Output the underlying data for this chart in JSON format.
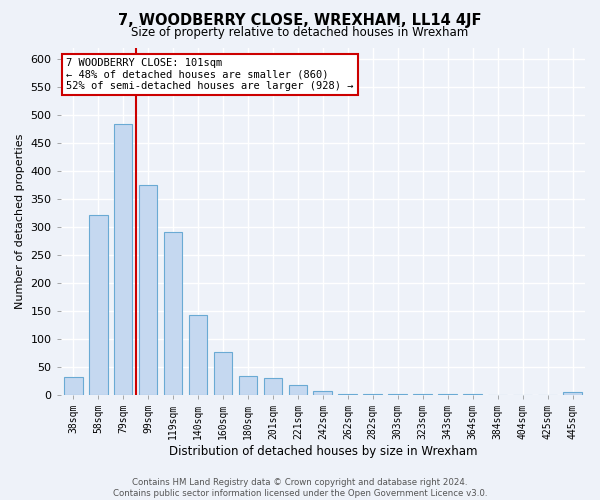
{
  "title": "7, WOODBERRY CLOSE, WREXHAM, LL14 4JF",
  "subtitle": "Size of property relative to detached houses in Wrexham",
  "xlabel": "Distribution of detached houses by size in Wrexham",
  "ylabel": "Number of detached properties",
  "bar_color": "#c5d8f0",
  "bar_edge_color": "#6aaad4",
  "background_color": "#eef2f9",
  "grid_color": "#ffffff",
  "categories": [
    "38sqm",
    "58sqm",
    "79sqm",
    "99sqm",
    "119sqm",
    "140sqm",
    "160sqm",
    "180sqm",
    "201sqm",
    "221sqm",
    "242sqm",
    "262sqm",
    "282sqm",
    "303sqm",
    "323sqm",
    "343sqm",
    "364sqm",
    "384sqm",
    "404sqm",
    "425sqm",
    "445sqm"
  ],
  "values": [
    32,
    320,
    483,
    375,
    290,
    143,
    77,
    34,
    30,
    17,
    7,
    2,
    1,
    1,
    1,
    2,
    1,
    0,
    0,
    0,
    4
  ],
  "vline_color": "#cc0000",
  "vline_x_index": 3,
  "annotation_title": "7 WOODBERRY CLOSE: 101sqm",
  "annotation_line1": "← 48% of detached houses are smaller (860)",
  "annotation_line2": "52% of semi-detached houses are larger (928) →",
  "annotation_box_color": "#ffffff",
  "annotation_box_edge": "#cc0000",
  "ylim": [
    0,
    620
  ],
  "yticks": [
    0,
    50,
    100,
    150,
    200,
    250,
    300,
    350,
    400,
    450,
    500,
    550,
    600
  ],
  "footer1": "Contains HM Land Registry data © Crown copyright and database right 2024.",
  "footer2": "Contains public sector information licensed under the Open Government Licence v3.0."
}
